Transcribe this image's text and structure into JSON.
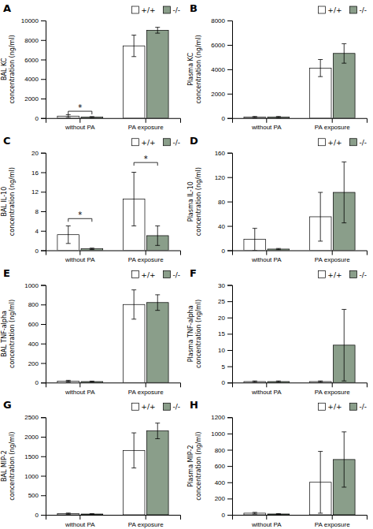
{
  "chart_data": [
    {
      "type": "bar",
      "title": "A",
      "y_label": "BAL KC\nconcentration (ng/ml)",
      "categories": [
        "without PA",
        "PA exposure"
      ],
      "series": [
        {
          "name": "+/+",
          "color": "white",
          "values": [
            200,
            7400
          ],
          "errors": [
            150,
            1100
          ]
        },
        {
          "name": "-/-",
          "color": "#8a9e8a",
          "values": [
            100,
            9000
          ],
          "errors": [
            50,
            300
          ]
        }
      ],
      "ylim": [
        0,
        10000
      ],
      "yticks": [
        0,
        2000,
        4000,
        6000,
        8000,
        10000
      ],
      "annotations": [
        {
          "text": "*",
          "category": "without PA",
          "y": 700
        }
      ],
      "legend": "upper right"
    },
    {
      "type": "bar",
      "title": "B",
      "y_label": "Plasma KC\nconcentration (ng/ml)",
      "categories": [
        "without PA",
        "PA exposure"
      ],
      "series": [
        {
          "name": "+/+",
          "color": "white",
          "values": [
            80,
            4100
          ],
          "errors": [
            50,
            700
          ]
        },
        {
          "name": "-/-",
          "color": "#8a9e8a",
          "values": [
            80,
            5300
          ],
          "errors": [
            50,
            800
          ]
        }
      ],
      "ylim": [
        0,
        8000
      ],
      "yticks": [
        0,
        2000,
        4000,
        6000,
        8000
      ],
      "legend": "upper right"
    },
    {
      "type": "bar",
      "title": "C",
      "y_label": "BAL IL-10\nconcentration (ng/ml)",
      "categories": [
        "without PA",
        "PA exposure"
      ],
      "series": [
        {
          "name": "+/+",
          "color": "white",
          "values": [
            3.2,
            10.5
          ],
          "errors": [
            1.8,
            5.5
          ]
        },
        {
          "name": "-/-",
          "color": "#8a9e8a",
          "values": [
            0.3,
            3.0
          ],
          "errors": [
            0.15,
            2.0
          ]
        }
      ],
      "ylim": [
        0,
        20
      ],
      "yticks": [
        0,
        4,
        8,
        12,
        16,
        20
      ],
      "annotations": [
        {
          "text": "*",
          "category": "without PA",
          "y": 6.5
        },
        {
          "text": "*",
          "category": "PA exposure",
          "y": 18.0
        }
      ],
      "legend": "upper right"
    },
    {
      "type": "bar",
      "title": "D",
      "y_label": "Plasma IL-10\nconcentration (ng/ml)",
      "categories": [
        "without PA",
        "PA exposure"
      ],
      "series": [
        {
          "name": "+/+",
          "color": "white",
          "values": [
            18,
            55
          ],
          "errors": [
            18,
            40
          ]
        },
        {
          "name": "-/-",
          "color": "#8a9e8a",
          "values": [
            2,
            95
          ],
          "errors": [
            1,
            50
          ]
        }
      ],
      "ylim": [
        0,
        160
      ],
      "yticks": [
        0,
        40,
        80,
        120,
        160
      ],
      "legend": "upper right"
    },
    {
      "type": "bar",
      "title": "E",
      "y_label": "BAL TNF-alpha\nconcentration (ng/ml)",
      "categories": [
        "without PA",
        "PA exposure"
      ],
      "series": [
        {
          "name": "+/+",
          "color": "white",
          "values": [
            15,
            800
          ],
          "errors": [
            8,
            150
          ]
        },
        {
          "name": "-/-",
          "color": "#8a9e8a",
          "values": [
            10,
            820
          ],
          "errors": [
            5,
            80
          ]
        }
      ],
      "ylim": [
        0,
        1000
      ],
      "yticks": [
        0,
        200,
        400,
        600,
        800,
        1000
      ],
      "legend": "upper right"
    },
    {
      "type": "bar",
      "title": "F",
      "y_label": "Plasma TNF-alpha\nconcentration (ng/ml)",
      "categories": [
        "without PA",
        "PA exposure"
      ],
      "series": [
        {
          "name": "+/+",
          "color": "white",
          "values": [
            0.3,
            0.3
          ],
          "errors": [
            0.2,
            0.2
          ]
        },
        {
          "name": "-/-",
          "color": "#8a9e8a",
          "values": [
            0.3,
            11.5
          ],
          "errors": [
            0.2,
            11.0
          ]
        }
      ],
      "ylim": [
        0,
        30
      ],
      "yticks": [
        0,
        5,
        10,
        15,
        20,
        25,
        30
      ],
      "legend": "upper right"
    },
    {
      "type": "bar",
      "title": "G",
      "y_label": "BAL MIP-2\nconcentration (ng/ml)",
      "categories": [
        "without PA",
        "PA exposure"
      ],
      "series": [
        {
          "name": "+/+",
          "color": "white",
          "values": [
            30,
            1650
          ],
          "errors": [
            15,
            450
          ]
        },
        {
          "name": "-/-",
          "color": "#8a9e8a",
          "values": [
            20,
            2150
          ],
          "errors": [
            10,
            200
          ]
        }
      ],
      "ylim": [
        0,
        2500
      ],
      "yticks": [
        0,
        500,
        1000,
        1500,
        2000,
        2500
      ],
      "legend": "upper right"
    },
    {
      "type": "bar",
      "title": "H",
      "y_label": "Plasma MIP-2\nconcentration (ng/ml)",
      "categories": [
        "without PA",
        "PA exposure"
      ],
      "series": [
        {
          "name": "+/+",
          "color": "white",
          "values": [
            20,
            400
          ],
          "errors": [
            10,
            380
          ]
        },
        {
          "name": "-/-",
          "color": "#8a9e8a",
          "values": [
            10,
            680
          ],
          "errors": [
            5,
            340
          ]
        }
      ],
      "ylim": [
        0,
        1200
      ],
      "yticks": [
        0,
        200,
        400,
        600,
        800,
        1000,
        1200
      ],
      "legend": "upper right"
    }
  ]
}
